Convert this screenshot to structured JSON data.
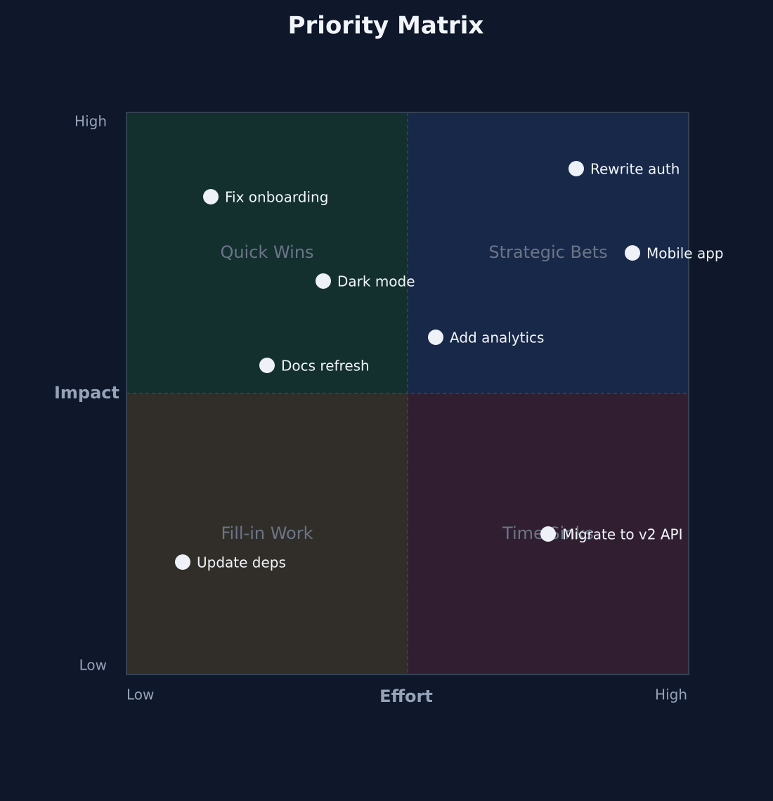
{
  "chart_data": {
    "type": "scatter",
    "title": "Priority Matrix",
    "x_label": "Effort",
    "y_label": "Impact",
    "xlim": [
      0,
      100
    ],
    "ylim": [
      0,
      100
    ],
    "xticks": [
      {
        "value": 0,
        "label": "Low"
      },
      {
        "value": 100,
        "label": "High"
      }
    ],
    "yticks": [
      {
        "value": 0,
        "label": "Low"
      },
      {
        "value": 100,
        "label": "High"
      }
    ],
    "quadrants": [
      {
        "name": "Quick Wins",
        "color": "#13302f"
      },
      {
        "name": "Strategic Bets",
        "color": "#182848"
      },
      {
        "name": "Fill-in Work",
        "color": "#312e29"
      },
      {
        "name": "Time Sinks",
        "color": "#311f31"
      }
    ],
    "point_color": "#eef1f7",
    "labels": [
      "Rewrite auth",
      "Fix onboarding",
      "Mobile app",
      "Dark mode",
      "Add analytics",
      "Docs refresh",
      "Migrate to v2 API",
      "Update deps"
    ],
    "x": [
      80,
      15,
      90,
      35,
      55,
      25,
      75,
      10
    ],
    "values": [
      90,
      85,
      75,
      70,
      60,
      55,
      25,
      20
    ]
  }
}
